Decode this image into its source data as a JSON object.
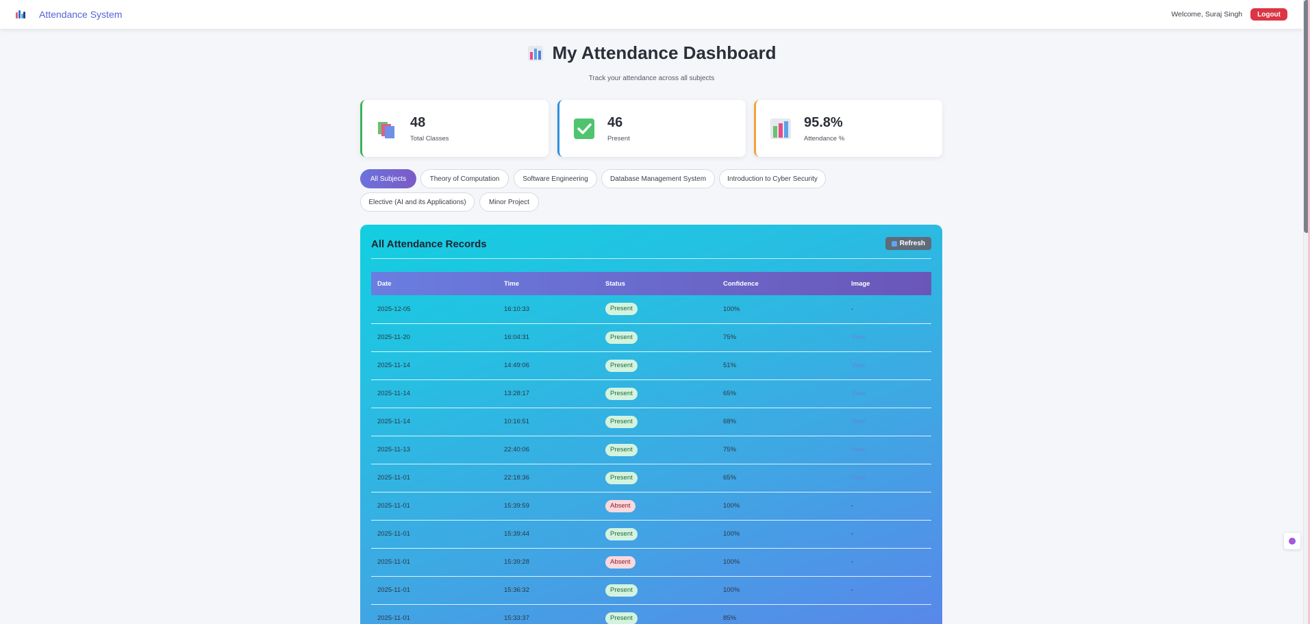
{
  "navbar": {
    "brand": "Attendance System",
    "welcome": "Welcome, Suraj Singh",
    "logout_label": "Logout"
  },
  "header": {
    "title": "My Attendance Dashboard",
    "subtitle": "Track your attendance across all subjects"
  },
  "stats": [
    {
      "value": "48",
      "label": "Total Classes",
      "icon": "books-icon"
    },
    {
      "value": "46",
      "label": "Present",
      "icon": "check-icon"
    },
    {
      "value": "95.8%",
      "label": "Attendance %",
      "icon": "bar-chart-icon"
    }
  ],
  "filters": [
    {
      "label": "All Subjects",
      "active": true
    },
    {
      "label": "Theory of Computation",
      "active": false
    },
    {
      "label": "Software Engineering",
      "active": false
    },
    {
      "label": "Database Management System",
      "active": false
    },
    {
      "label": "Introduction to Cyber Security",
      "active": false
    },
    {
      "label": "Elective (AI and its Applications)",
      "active": false
    },
    {
      "label": "Minor Project",
      "active": false
    }
  ],
  "records": {
    "title": "All Attendance Records",
    "refresh_label": "Refresh",
    "columns": [
      "Date",
      "Time",
      "Status",
      "Confidence",
      "Image"
    ],
    "rows": [
      {
        "date": "2025-12-05",
        "time": "16:10:33",
        "status": "Present",
        "confidence": "100%",
        "image": "-"
      },
      {
        "date": "2025-11-20",
        "time": "16:04:31",
        "status": "Present",
        "confidence": "75%",
        "image": "View"
      },
      {
        "date": "2025-11-14",
        "time": "14:49:06",
        "status": "Present",
        "confidence": "51%",
        "image": "View"
      },
      {
        "date": "2025-11-14",
        "time": "13:28:17",
        "status": "Present",
        "confidence": "65%",
        "image": "View"
      },
      {
        "date": "2025-11-14",
        "time": "10:16:51",
        "status": "Present",
        "confidence": "68%",
        "image": "View"
      },
      {
        "date": "2025-11-13",
        "time": "22:40:06",
        "status": "Present",
        "confidence": "75%",
        "image": "View"
      },
      {
        "date": "2025-11-01",
        "time": "22:18:36",
        "status": "Present",
        "confidence": "65%",
        "image": "View"
      },
      {
        "date": "2025-11-01",
        "time": "15:39:59",
        "status": "Absent",
        "confidence": "100%",
        "image": "-"
      },
      {
        "date": "2025-11-01",
        "time": "15:39:44",
        "status": "Present",
        "confidence": "100%",
        "image": "-"
      },
      {
        "date": "2025-11-01",
        "time": "15:39:28",
        "status": "Absent",
        "confidence": "100%",
        "image": "-"
      },
      {
        "date": "2025-11-01",
        "time": "15:36:32",
        "status": "Present",
        "confidence": "100%",
        "image": "-"
      },
      {
        "date": "2025-11-01",
        "time": "15:33:37",
        "status": "Present",
        "confidence": "85%",
        "image": ""
      }
    ]
  },
  "colors": {
    "brand": "#5563d9",
    "logout": "#dc3545",
    "present_bg": "#d4f3df",
    "absent_bg": "#fbd8dc",
    "accent_green": "#3cb35b",
    "accent_blue": "#2f8fd8",
    "accent_orange": "#f3a23b"
  }
}
